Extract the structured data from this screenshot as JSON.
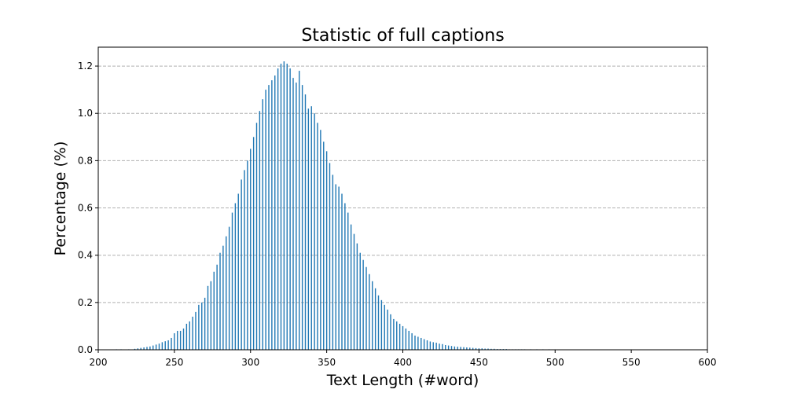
{
  "chart_data": {
    "type": "bar",
    "title": "Statistic of full captions",
    "xlabel": "Text Length (#word)",
    "ylabel": "Percentage (%)",
    "xlim": [
      200,
      600
    ],
    "ylim": [
      0,
      1.28
    ],
    "xticks": [
      "200",
      "250",
      "300",
      "350",
      "400",
      "450",
      "500",
      "550",
      "600"
    ],
    "yticks": [
      "0.0",
      "0.2",
      "0.4",
      "0.6",
      "0.8",
      "1.0",
      "1.2"
    ],
    "grid": "y-dashed",
    "bar_color": "#1f77b4",
    "x": [
      212,
      215,
      220,
      224,
      226,
      228,
      230,
      232,
      234,
      236,
      238,
      240,
      242,
      244,
      246,
      248,
      250,
      252,
      254,
      256,
      258,
      260,
      262,
      264,
      266,
      268,
      270,
      272,
      274,
      276,
      278,
      280,
      282,
      284,
      286,
      288,
      290,
      292,
      294,
      296,
      298,
      300,
      302,
      304,
      306,
      308,
      310,
      312,
      314,
      316,
      318,
      320,
      322,
      324,
      326,
      328,
      330,
      332,
      334,
      336,
      338,
      340,
      342,
      344,
      346,
      348,
      350,
      352,
      354,
      356,
      358,
      360,
      362,
      364,
      366,
      368,
      370,
      372,
      374,
      376,
      378,
      380,
      382,
      384,
      386,
      388,
      390,
      392,
      394,
      396,
      398,
      400,
      402,
      404,
      406,
      408,
      410,
      412,
      414,
      416,
      418,
      420,
      422,
      424,
      426,
      428,
      430,
      432,
      434,
      436,
      438,
      440,
      442,
      444,
      446,
      448,
      450,
      452,
      454,
      456,
      458,
      460,
      462,
      464,
      466,
      468,
      470,
      472,
      474,
      476,
      478,
      480,
      484,
      488,
      492,
      496,
      500,
      504,
      508,
      512,
      518,
      525,
      530,
      540,
      550,
      565,
      580
    ],
    "values": [
      0.002,
      0.002,
      0.002,
      0.004,
      0.006,
      0.008,
      0.01,
      0.012,
      0.014,
      0.018,
      0.022,
      0.026,
      0.032,
      0.036,
      0.04,
      0.05,
      0.07,
      0.08,
      0.08,
      0.09,
      0.11,
      0.12,
      0.14,
      0.16,
      0.19,
      0.2,
      0.22,
      0.27,
      0.29,
      0.33,
      0.36,
      0.41,
      0.44,
      0.48,
      0.52,
      0.58,
      0.62,
      0.66,
      0.72,
      0.76,
      0.8,
      0.85,
      0.9,
      0.96,
      1.01,
      1.06,
      1.1,
      1.12,
      1.14,
      1.16,
      1.19,
      1.21,
      1.22,
      1.21,
      1.19,
      1.15,
      1.13,
      1.18,
      1.12,
      1.08,
      1.02,
      1.03,
      1.0,
      0.96,
      0.93,
      0.88,
      0.84,
      0.79,
      0.74,
      0.7,
      0.69,
      0.66,
      0.62,
      0.58,
      0.53,
      0.49,
      0.45,
      0.41,
      0.38,
      0.35,
      0.32,
      0.29,
      0.26,
      0.23,
      0.21,
      0.19,
      0.17,
      0.15,
      0.13,
      0.12,
      0.11,
      0.1,
      0.09,
      0.08,
      0.07,
      0.06,
      0.055,
      0.05,
      0.045,
      0.04,
      0.035,
      0.032,
      0.03,
      0.026,
      0.024,
      0.02,
      0.018,
      0.016,
      0.014,
      0.013,
      0.012,
      0.011,
      0.01,
      0.009,
      0.008,
      0.007,
      0.006,
      0.006,
      0.005,
      0.005,
      0.004,
      0.004,
      0.003,
      0.003,
      0.003,
      0.003,
      0.002,
      0.002,
      0.002,
      0.002,
      0.002,
      0.002,
      0.002,
      0.002,
      0.002,
      0.002,
      0.001,
      0.001,
      0.001,
      0.001,
      0.001,
      0.001,
      0.001,
      0.001,
      0.001,
      0.001,
      0.001
    ]
  }
}
